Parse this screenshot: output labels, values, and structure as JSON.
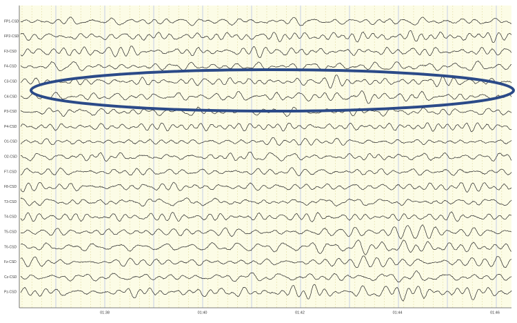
{
  "channels": [
    "FP1-CSD",
    "FP2-CSD",
    "F3-CSD",
    "F4-CSD",
    "C3-CSD",
    "C4-CSD",
    "P3-CSD",
    "P4-CSD",
    "O1-CSD",
    "O2-CSD",
    "F7-CSD",
    "F8-CSD",
    "T3-CSD",
    "T4-CSD",
    "T5-CSD",
    "T6-CSD",
    "Fz-CSD",
    "Cz-CSD",
    "Pz-CSD"
  ],
  "time_labels": [
    "01:38",
    "01:40",
    "01:42",
    "01:44",
    "01:46"
  ]
}
